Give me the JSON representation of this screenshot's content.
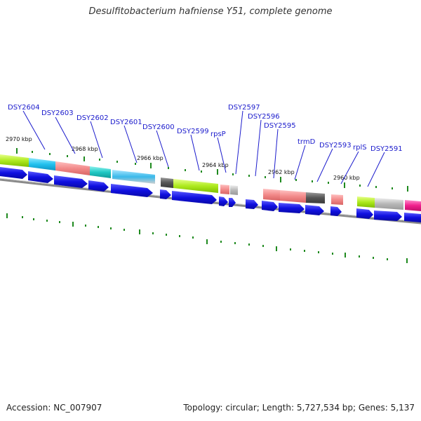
{
  "title": "Desulfitobacterium hafniense Y51, complete genome",
  "footer": {
    "accession": "Accession: NC_007907",
    "topology": "Topology: circular; Length: 5,727,534 bp; Genes: 5,137"
  },
  "colors": {
    "backbone": "#7a7a7a",
    "cds_arrow": "#1010e0",
    "tick": "#1f8a1f",
    "label_text": "#1a1acc",
    "label_line": "#1a1acc"
  },
  "kbp_labels": [
    "2970 kbp",
    "2968 kbp",
    "2966 kbp",
    "2964 kbp",
    "2962 kbp",
    "2960 kbp"
  ],
  "gene_labels": [
    "DSY2604",
    "DSY2603",
    "DSY2602",
    "DSY2601",
    "DSY2600",
    "DSY2599",
    "rpsP",
    "DSY2597",
    "DSY2596",
    "DSY2595",
    "trmD",
    "DSY2593",
    "rplS",
    "DSY2591"
  ],
  "feature_colors": [
    "yellow-green",
    "cyan",
    "salmon",
    "teal",
    "sky-blue",
    "dark-gray",
    "light-gray",
    "magenta"
  ]
}
